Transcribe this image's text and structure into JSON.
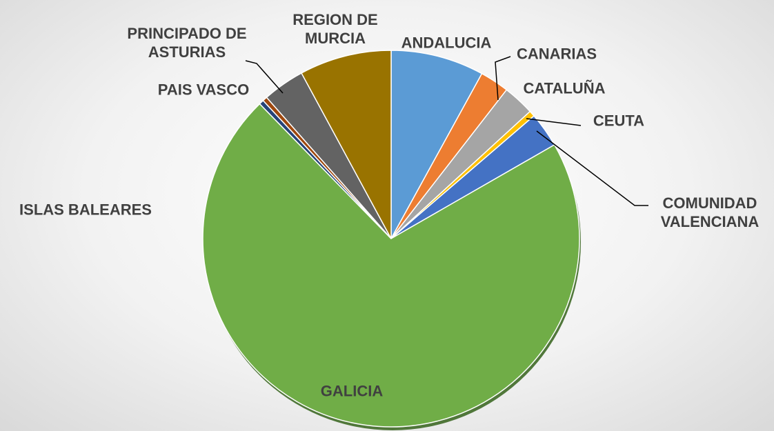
{
  "chart_data": {
    "type": "pie",
    "categories": [
      "ANDALUCIA",
      "CANARIAS",
      "CATALUÑA",
      "CEUTA",
      "COMUNIDAD VALENCIANA",
      "GALICIA",
      "ISLAS BALEARES",
      "PAIS VASCO",
      "PRINCIPADO DE ASTURIAS",
      "REGION DE MURCIA"
    ],
    "values": [
      8,
      2.5,
      2.7,
      0.5,
      3,
      71,
      0.4,
      0.4,
      3.6,
      7.9
    ],
    "colors": [
      "#5b9bd5",
      "#ed7d31",
      "#a5a5a5",
      "#ffc000",
      "#4472c4",
      "#70ad47",
      "#264478",
      "#9e480e",
      "#636363",
      "#997300"
    ]
  }
}
